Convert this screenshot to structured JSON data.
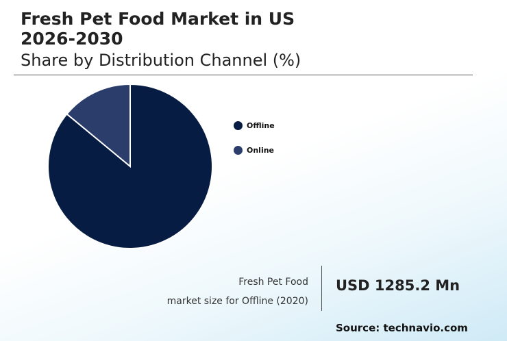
{
  "title_line1": "Fresh Pet Food Market in US",
  "title_line2": "2026-2030",
  "subtitle": "Share by Distribution Channel (%)",
  "chart_data": {
    "type": "pie",
    "title": "Fresh Pet Food Market in US 2026-2030",
    "subtitle": "Share by Distribution Channel (%)",
    "categories": [
      "Offline",
      "Online"
    ],
    "values": [
      86,
      14
    ],
    "colors": [
      "#071c42",
      "#2a3d6b"
    ],
    "start_angle_deg": 0,
    "legend_position": "right"
  },
  "caption": {
    "line1": "Fresh Pet Food",
    "line2": "market size for Offline (2020)"
  },
  "value": "USD 1285.2 Mn",
  "source": "Source: technavio.com"
}
